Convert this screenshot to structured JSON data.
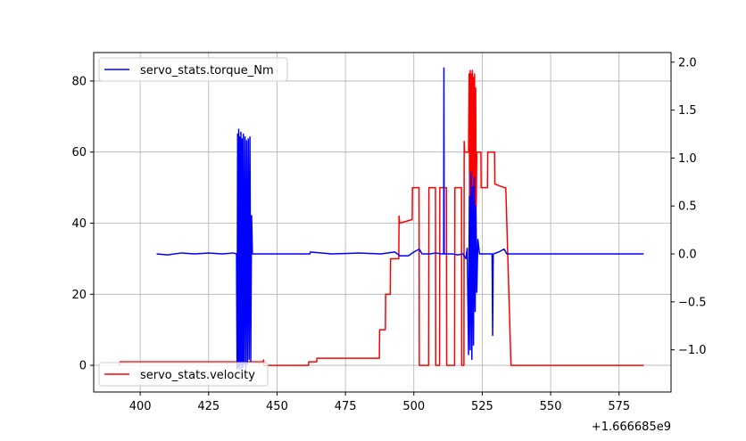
{
  "chart_data": {
    "type": "line",
    "x_offset_label": "+1.666685e9",
    "xlim": [
      383,
      594
    ],
    "x_ticks": [
      400,
      425,
      450,
      475,
      500,
      525,
      550,
      575
    ],
    "x_tick_labels": [
      "400",
      "425",
      "450",
      "475",
      "500",
      "525",
      "550",
      "575"
    ],
    "grid": true,
    "axes": {
      "left": {
        "ylim": [
          -7.5,
          88
        ],
        "ticks": [
          0,
          20,
          40,
          60,
          80
        ],
        "tick_labels": [
          "0",
          "20",
          "40",
          "60",
          "80"
        ]
      },
      "right": {
        "ylim": [
          -1.44,
          2.1
        ],
        "ticks": [
          -1.0,
          -0.5,
          0.0,
          0.5,
          1.0,
          1.5,
          2.0
        ],
        "tick_labels": [
          "−1.0",
          "−0.5",
          "0.0",
          "0.5",
          "1.0",
          "1.5",
          "2.0"
        ]
      }
    },
    "series": [
      {
        "name": "servo_stats.torque_Nm",
        "axis": "right",
        "color": "#0000ff",
        "legend": "top-left",
        "points": [
          [
            406,
            0.0
          ],
          [
            410,
            -0.01
          ],
          [
            415,
            0.01
          ],
          [
            420,
            0.0
          ],
          [
            425,
            0.01
          ],
          [
            430,
            0.0
          ],
          [
            434,
            0.01
          ],
          [
            435.2,
            0.0
          ],
          [
            435.4,
            -1.2
          ],
          [
            435.6,
            1.25
          ],
          [
            435.8,
            -1.18
          ],
          [
            436.0,
            1.3
          ],
          [
            436.2,
            -1.2
          ],
          [
            436.4,
            1.22
          ],
          [
            436.6,
            -1.15
          ],
          [
            436.8,
            1.27
          ],
          [
            437.0,
            -1.2
          ],
          [
            437.2,
            1.2
          ],
          [
            437.5,
            -1.18
          ],
          [
            437.7,
            1.25
          ],
          [
            438.0,
            -1.15
          ],
          [
            438.3,
            1.22
          ],
          [
            438.6,
            -1.2
          ],
          [
            438.9,
            1.18
          ],
          [
            439.2,
            -1.15
          ],
          [
            439.5,
            1.2
          ],
          [
            439.8,
            -1.1
          ],
          [
            440.1,
            1.22
          ],
          [
            440.4,
            -1.12
          ],
          [
            440.7,
            0.4
          ],
          [
            441.0,
            0.0
          ],
          [
            445,
            0.0
          ],
          [
            455,
            0.0
          ],
          [
            462,
            0.0
          ],
          [
            462.2,
            0.02
          ],
          [
            470,
            0.0
          ],
          [
            480,
            0.01
          ],
          [
            488,
            0.0
          ],
          [
            493,
            0.02
          ],
          [
            495,
            -0.02
          ],
          [
            498,
            -0.02
          ],
          [
            500,
            0.02
          ],
          [
            502,
            0.05
          ],
          [
            503,
            0.0
          ],
          [
            506,
            0.0
          ],
          [
            508,
            0.01
          ],
          [
            510,
            0.0
          ],
          [
            510.9,
            0.0
          ],
          [
            511.0,
            1.94
          ],
          [
            511.1,
            0.0
          ],
          [
            514,
            0.0
          ],
          [
            516,
            -0.01
          ],
          [
            518,
            0.0
          ],
          [
            519,
            -0.05
          ],
          [
            519.5,
            0.06
          ],
          [
            520.0,
            -1.05
          ],
          [
            520.3,
            0.6
          ],
          [
            520.6,
            -1.0
          ],
          [
            520.9,
            0.85
          ],
          [
            521.2,
            -1.1
          ],
          [
            521.5,
            0.7
          ],
          [
            521.8,
            -0.95
          ],
          [
            522.1,
            0.8
          ],
          [
            522.4,
            -0.6
          ],
          [
            522.7,
            0.5
          ],
          [
            523.0,
            -0.4
          ],
          [
            523.4,
            0.15
          ],
          [
            524,
            0.0
          ],
          [
            526,
            0.0
          ],
          [
            528.6,
            0.0
          ],
          [
            528.8,
            -0.85
          ],
          [
            529.0,
            0.0
          ],
          [
            531,
            0.02
          ],
          [
            533,
            0.05
          ],
          [
            534,
            0.0
          ],
          [
            550,
            0.0
          ],
          [
            565,
            0.0
          ],
          [
            584,
            0.0
          ]
        ]
      },
      {
        "name": "servo_stats.velocity",
        "axis": "left",
        "color": "#ff0000",
        "legend": "bottom-left",
        "points": [
          [
            392.5,
            0.0
          ],
          [
            392.6,
            1.0
          ],
          [
            410,
            1.0
          ],
          [
            430,
            1.0
          ],
          [
            440,
            1.0
          ],
          [
            445,
            1.0
          ],
          [
            445.1,
            1.5
          ],
          [
            445.3,
            0.0
          ],
          [
            455,
            0.0
          ],
          [
            461.5,
            0.0
          ],
          [
            461.6,
            1.0
          ],
          [
            464.5,
            1.0
          ],
          [
            464.6,
            2.0
          ],
          [
            475,
            2.0
          ],
          [
            487.4,
            2.0
          ],
          [
            487.5,
            10.0
          ],
          [
            489.6,
            10.0
          ],
          [
            489.7,
            20.0
          ],
          [
            491.4,
            20.0
          ],
          [
            491.5,
            30.0
          ],
          [
            494.5,
            30.0
          ],
          [
            494.6,
            42.0
          ],
          [
            494.8,
            40.0
          ],
          [
            499.4,
            41.0
          ],
          [
            499.5,
            50.0
          ],
          [
            501.9,
            50.0
          ],
          [
            502.0,
            0.0
          ],
          [
            505.4,
            0.0
          ],
          [
            505.5,
            50.0
          ],
          [
            507.9,
            50.0
          ],
          [
            508.0,
            0.0
          ],
          [
            509.4,
            0.0
          ],
          [
            509.5,
            50.0
          ],
          [
            511.9,
            50.0
          ],
          [
            512.0,
            0.0
          ],
          [
            514.9,
            0.0
          ],
          [
            515.0,
            50.0
          ],
          [
            517.4,
            50.0
          ],
          [
            517.5,
            0.0
          ],
          [
            518.3,
            0.0
          ],
          [
            518.4,
            63.0
          ],
          [
            518.6,
            60.0
          ],
          [
            520.0,
            60.0
          ],
          [
            520.2,
            82.0
          ],
          [
            520.4,
            40.0
          ],
          [
            520.6,
            83.0
          ],
          [
            520.8,
            35.0
          ],
          [
            521.0,
            82.0
          ],
          [
            521.2,
            30.0
          ],
          [
            521.4,
            83.0
          ],
          [
            521.6,
            28.0
          ],
          [
            521.8,
            81.0
          ],
          [
            522.0,
            30.0
          ],
          [
            522.2,
            82.0
          ],
          [
            522.4,
            35.0
          ],
          [
            522.6,
            78.0
          ],
          [
            522.8,
            45.0
          ],
          [
            523.0,
            60.0
          ],
          [
            524.5,
            60.0
          ],
          [
            524.6,
            50.0
          ],
          [
            526.9,
            50.0
          ],
          [
            527.0,
            60.0
          ],
          [
            529.5,
            60.0
          ],
          [
            529.6,
            51.0
          ],
          [
            533.0,
            50.0
          ],
          [
            533.6,
            50.0
          ],
          [
            535.5,
            0.0
          ],
          [
            536.0,
            0.0
          ],
          [
            550,
            0.0
          ],
          [
            575,
            0.0
          ],
          [
            584,
            0.0
          ]
        ]
      }
    ]
  }
}
